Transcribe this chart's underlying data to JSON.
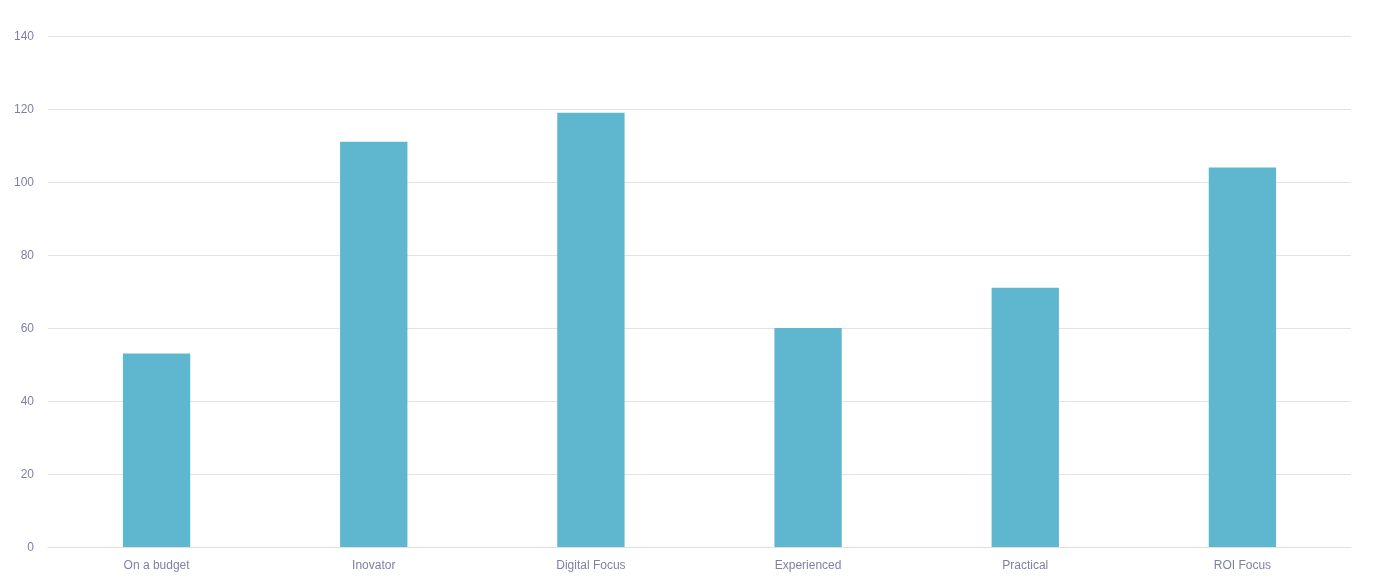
{
  "chart_data": {
    "type": "bar",
    "categories": [
      "On a budget",
      "Inovator",
      "Digital Focus",
      "Experienced",
      "Practical",
      "ROI Focus"
    ],
    "values": [
      53,
      111,
      119,
      60,
      71,
      104
    ],
    "color": "#5eb7cf",
    "ylim": [
      0,
      140
    ],
    "yticks": [
      0,
      20,
      40,
      60,
      80,
      100,
      120,
      140
    ],
    "grid": "y"
  }
}
